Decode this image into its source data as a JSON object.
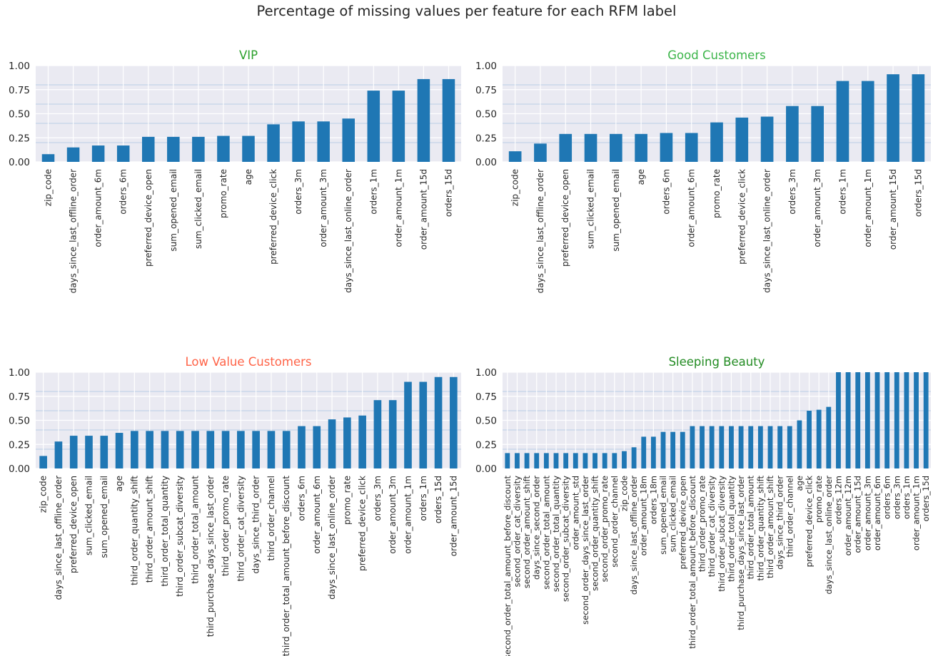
{
  "suptitle": "Percentage of missing values per feature for each RFM label",
  "chart_data": [
    {
      "type": "bar",
      "title": "VIP",
      "title_color": "#2ca02c",
      "bar_color": "#1f77b4",
      "grid": true,
      "ylim": [
        0,
        1.0
      ],
      "yticks": [
        "0.00",
        "0.25",
        "0.50",
        "0.75",
        "1.00"
      ],
      "categories": [
        "zip_code",
        "days_since_last_offline_order",
        "order_amount_6m",
        "orders_6m",
        "preferred_device_open",
        "sum_opened_email",
        "sum_clicked_email",
        "promo_rate",
        "age",
        "preferred_device_click",
        "orders_3m",
        "order_amount_3m",
        "days_since_last_online_order",
        "orders_1m",
        "order_amount_1m",
        "order_amount_15d",
        "orders_15d"
      ],
      "values": [
        0.08,
        0.15,
        0.17,
        0.17,
        0.26,
        0.26,
        0.26,
        0.27,
        0.27,
        0.39,
        0.42,
        0.42,
        0.45,
        0.74,
        0.74,
        0.86,
        0.86
      ]
    },
    {
      "type": "bar",
      "title": "Good Customers",
      "title_color": "#3cb54a",
      "bar_color": "#1f77b4",
      "grid": true,
      "ylim": [
        0,
        1.0
      ],
      "yticks": [
        "0.00",
        "0.25",
        "0.50",
        "0.75",
        "1.00"
      ],
      "categories": [
        "zip_code",
        "days_since_last_offline_order",
        "preferred_device_open",
        "sum_clicked_email",
        "sum_opened_email",
        "age",
        "orders_6m",
        "order_amount_6m",
        "promo_rate",
        "preferred_device_click",
        "days_since_last_online_order",
        "orders_3m",
        "order_amount_3m",
        "orders_1m",
        "order_amount_1m",
        "order_amount_15d",
        "orders_15d"
      ],
      "values": [
        0.11,
        0.19,
        0.29,
        0.29,
        0.29,
        0.29,
        0.3,
        0.3,
        0.41,
        0.46,
        0.47,
        0.58,
        0.58,
        0.84,
        0.84,
        0.91,
        0.91
      ]
    },
    {
      "type": "bar",
      "title": "Low Value Customers",
      "title_color": "#ff6347",
      "bar_color": "#1f77b4",
      "grid": true,
      "ylim": [
        0,
        1.0
      ],
      "yticks": [
        "0.00",
        "0.25",
        "0.50",
        "0.75",
        "1.00"
      ],
      "categories": [
        "zip_code",
        "days_since_last_offline_order",
        "preferred_device_open",
        "sum_clicked_email",
        "sum_opened_email",
        "age",
        "third_order_quantity_shift",
        "third_order_amount_shift",
        "third_order_total_quantity",
        "third_order_subcat_diversity",
        "third_order_total_amount",
        "third_purchase_days_since_last_order",
        "third_order_promo_rate",
        "third_order_cat_diversity",
        "days_since_third_order",
        "third_order_channel",
        "third_order_total_amount_before_discount",
        "orders_6m",
        "order_amount_6m",
        "days_since_last_online_order",
        "promo_rate",
        "preferred_device_click",
        "orders_3m",
        "order_amount_3m",
        "order_amount_1m",
        "orders_1m",
        "orders_15d",
        "order_amount_15d"
      ],
      "values": [
        0.13,
        0.28,
        0.34,
        0.34,
        0.34,
        0.37,
        0.39,
        0.39,
        0.39,
        0.39,
        0.39,
        0.39,
        0.39,
        0.39,
        0.39,
        0.39,
        0.39,
        0.44,
        0.44,
        0.51,
        0.53,
        0.55,
        0.71,
        0.71,
        0.9,
        0.9,
        0.95,
        0.95
      ]
    },
    {
      "type": "bar",
      "title": "Sleeping Beauty",
      "title_color": "#228b22",
      "bar_color": "#1f77b4",
      "grid": true,
      "ylim": [
        0,
        1.0
      ],
      "yticks": [
        "0.00",
        "0.25",
        "0.50",
        "0.75",
        "1.00"
      ],
      "categories": [
        "second_order_total_amount_before_discount",
        "second_order_cat_diversity",
        "second_order_amount_shift",
        "days_since_second_order",
        "second_order_total_amount",
        "second_order_total_quantity",
        "second_order_subcat_diversity",
        "order_amount_std",
        "second_order_days_since_last_order",
        "second_order_quantity_shift",
        "second_order_promo_rate",
        "second_order_channel",
        "zip_code",
        "days_since_last_offline_order",
        "order_amount_18m",
        "orders_18m",
        "sum_opened_email",
        "sum_clicked_email",
        "preferred_device_open",
        "third_order_total_amount_before_discount",
        "third_order_promo_rate",
        "third_order_cat_diversity",
        "third_order_subcat_diversity",
        "third_order_total_quantity",
        "third_purchase_days_since_last_order",
        "third_order_total_amount",
        "third_order_quantity_shift",
        "third_order_amount_shift",
        "days_since_third_order",
        "third_order_channel",
        "age",
        "preferred_device_click",
        "promo_rate",
        "days_since_last_online_order",
        "orders_12m",
        "order_amount_12m",
        "order_amount_15d",
        "order_amount_3m",
        "order_amount_6m",
        "orders_6m",
        "orders_3m",
        "orders_1m",
        "order_amount_1m",
        "orders_15d"
      ],
      "values": [
        0.16,
        0.16,
        0.16,
        0.16,
        0.16,
        0.16,
        0.16,
        0.16,
        0.16,
        0.16,
        0.16,
        0.16,
        0.18,
        0.22,
        0.33,
        0.33,
        0.38,
        0.38,
        0.38,
        0.44,
        0.44,
        0.44,
        0.44,
        0.44,
        0.44,
        0.44,
        0.44,
        0.44,
        0.44,
        0.44,
        0.5,
        0.6,
        0.61,
        0.64,
        1.0,
        1.0,
        1.0,
        1.0,
        1.0,
        1.0,
        1.0,
        1.0,
        1.0,
        1.0
      ]
    }
  ]
}
